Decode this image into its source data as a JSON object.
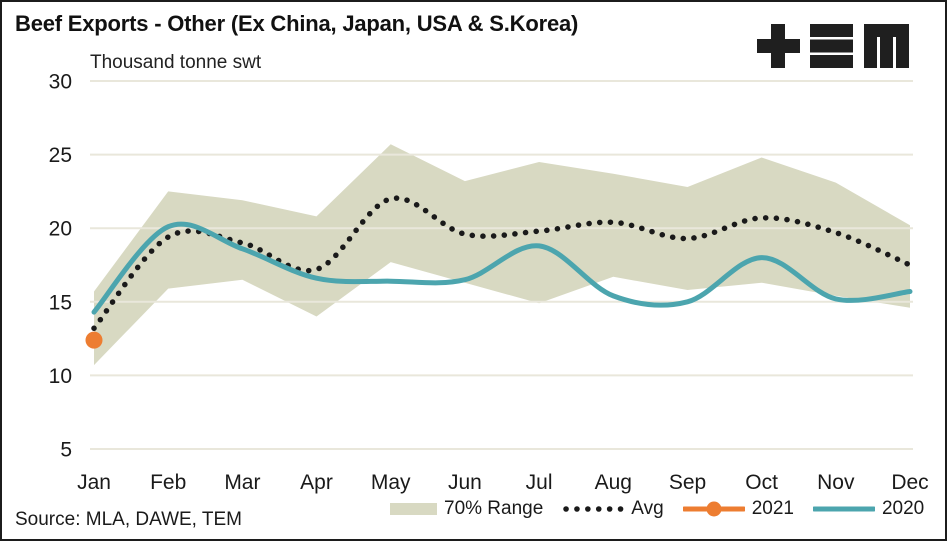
{
  "title": "Beef Exports - Other (Ex China, Japan, USA & S.Korea)",
  "source": "Source: MLA, DAWE, TEM",
  "logo": {
    "name": "TEM",
    "color": "#1f1f1f"
  },
  "colors": {
    "band": "#D8D9C2",
    "avg": "#1A1A1A",
    "y2021": "#ED7D31",
    "y2020": "#4CA5AE",
    "grid": "#E9E7DB",
    "text": "#1A1A1A",
    "border": "#1C1C1C"
  },
  "chart_data": {
    "type": "line",
    "title": "Beef Exports - Other (Ex China, Japan, USA & S.Korea)",
    "ylabel": "Thousand tonne swt",
    "xlabel": "",
    "ylim": [
      5,
      30
    ],
    "yticks": [
      5,
      10,
      15,
      20,
      25,
      30
    ],
    "grid": true,
    "legend_position": "bottom-right",
    "categories": [
      "Jan",
      "Feb",
      "Mar",
      "Apr",
      "May",
      "Jun",
      "Jul",
      "Aug",
      "Sep",
      "Oct",
      "Nov",
      "Dec"
    ],
    "series": [
      {
        "name": "70% Range",
        "type": "band",
        "color": "#D8D9C2",
        "upper": [
          15.7,
          22.5,
          21.9,
          20.8,
          25.7,
          23.2,
          24.5,
          23.7,
          22.8,
          24.8,
          23.1,
          20.2
        ],
        "lower": [
          10.7,
          15.9,
          16.5,
          14.0,
          17.7,
          16.3,
          14.9,
          16.7,
          15.8,
          16.3,
          15.4,
          14.6
        ]
      },
      {
        "name": "Avg",
        "type": "dotted_line",
        "color": "#1A1A1A",
        "values": [
          13.2,
          19.4,
          19.0,
          17.2,
          22.0,
          19.6,
          19.8,
          20.4,
          19.3,
          20.7,
          19.7,
          17.5
        ]
      },
      {
        "name": "2021",
        "type": "point",
        "color": "#ED7D31",
        "values": [
          12.4
        ]
      },
      {
        "name": "2020",
        "type": "line",
        "color": "#4CA5AE",
        "values": [
          14.3,
          20.1,
          18.6,
          16.6,
          16.4,
          16.5,
          18.8,
          15.4,
          15.0,
          18.0,
          15.2,
          15.7
        ]
      }
    ]
  }
}
